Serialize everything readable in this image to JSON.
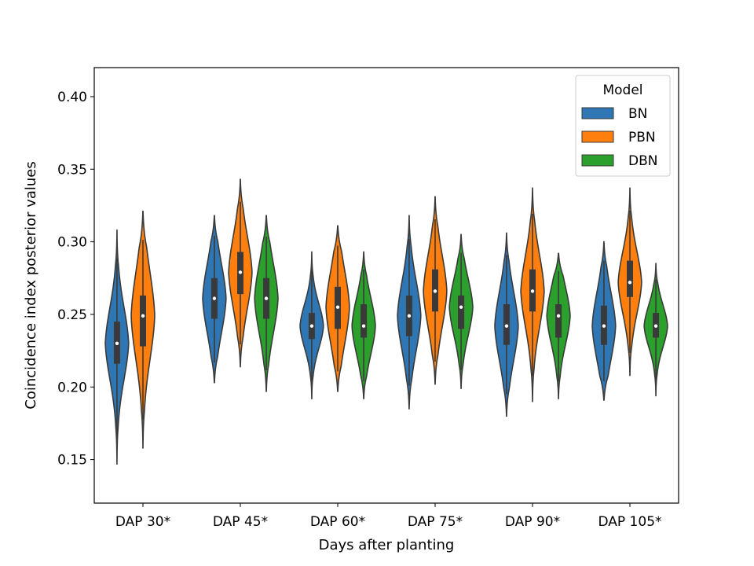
{
  "chart_data": {
    "type": "violin",
    "title": "",
    "xlabel": "Days after planting",
    "ylabel": "Coincidence index posterior values",
    "ylim": [
      0.12,
      0.42
    ],
    "yticks": [
      0.15,
      0.2,
      0.25,
      0.3,
      0.35,
      0.4
    ],
    "ytick_labels": [
      "0.15",
      "0.20",
      "0.25",
      "0.30",
      "0.35",
      "0.40"
    ],
    "categories": [
      "DAP 30*",
      "DAP 45*",
      "DAP 60*",
      "DAP 75*",
      "DAP 90*",
      "DAP 105*"
    ],
    "legend": {
      "title": "Model",
      "position": "top-right"
    },
    "series": [
      {
        "name": "BN",
        "color": "#2f77b4",
        "stats": [
          {
            "category": "DAP 30*",
            "min": 0.147,
            "q1": 0.216,
            "median": 0.23,
            "q3": 0.245,
            "max": 0.308
          },
          {
            "category": "DAP 45*",
            "min": 0.203,
            "q1": 0.247,
            "median": 0.261,
            "q3": 0.275,
            "max": 0.318
          },
          {
            "category": "DAP 60*",
            "min": 0.192,
            "q1": 0.233,
            "median": 0.242,
            "q3": 0.251,
            "max": 0.293
          },
          {
            "category": "DAP 75*",
            "min": 0.185,
            "q1": 0.235,
            "median": 0.249,
            "q3": 0.263,
            "max": 0.318
          },
          {
            "category": "DAP 90*",
            "min": 0.18,
            "q1": 0.229,
            "median": 0.242,
            "q3": 0.257,
            "max": 0.306
          },
          {
            "category": "DAP 105*",
            "min": 0.191,
            "q1": 0.229,
            "median": 0.242,
            "q3": 0.256,
            "max": 0.3
          }
        ]
      },
      {
        "name": "PBN",
        "color": "#ff7f0e",
        "stats": [
          {
            "category": "DAP 30*",
            "min": 0.158,
            "q1": 0.228,
            "median": 0.249,
            "q3": 0.263,
            "max": 0.321
          },
          {
            "category": "DAP 45*",
            "min": 0.214,
            "q1": 0.264,
            "median": 0.279,
            "q3": 0.293,
            "max": 0.343
          },
          {
            "category": "DAP 60*",
            "min": 0.197,
            "q1": 0.24,
            "median": 0.255,
            "q3": 0.269,
            "max": 0.311
          },
          {
            "category": "DAP 75*",
            "min": 0.202,
            "q1": 0.252,
            "median": 0.266,
            "q3": 0.281,
            "max": 0.331
          },
          {
            "category": "DAP 90*",
            "min": 0.19,
            "q1": 0.252,
            "median": 0.266,
            "q3": 0.281,
            "max": 0.337
          },
          {
            "category": "DAP 105*",
            "min": 0.208,
            "q1": 0.262,
            "median": 0.272,
            "q3": 0.287,
            "max": 0.337
          }
        ]
      },
      {
        "name": "DBN",
        "color": "#2ca02c",
        "stats": [
          {
            "category": "DAP 30*",
            "min": null,
            "q1": null,
            "median": null,
            "q3": null,
            "max": null
          },
          {
            "category": "DAP 45*",
            "min": 0.197,
            "q1": 0.247,
            "median": 0.261,
            "q3": 0.275,
            "max": 0.318
          },
          {
            "category": "DAP 60*",
            "min": 0.192,
            "q1": 0.234,
            "median": 0.242,
            "q3": 0.257,
            "max": 0.293
          },
          {
            "category": "DAP 75*",
            "min": 0.199,
            "q1": 0.24,
            "median": 0.255,
            "q3": 0.263,
            "max": 0.305
          },
          {
            "category": "DAP 90*",
            "min": 0.192,
            "q1": 0.234,
            "median": 0.249,
            "q3": 0.257,
            "max": 0.292
          },
          {
            "category": "DAP 105*",
            "min": 0.194,
            "q1": 0.234,
            "median": 0.242,
            "q3": 0.251,
            "max": 0.285
          }
        ]
      }
    ]
  }
}
